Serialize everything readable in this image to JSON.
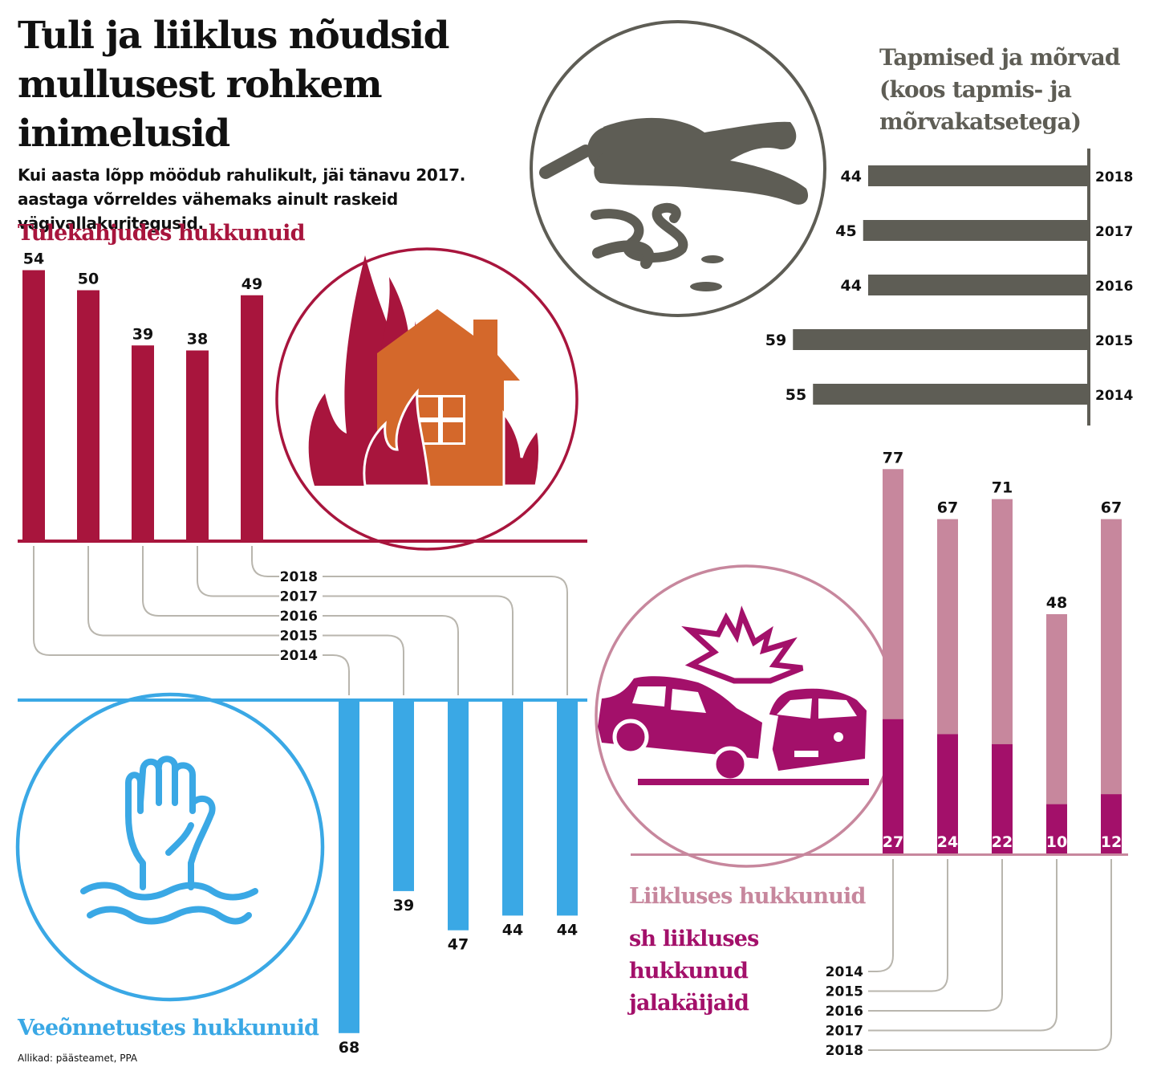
{
  "title": "Tuli ja liiklus nõudsid mullusest rohkem inimelusid",
  "subtitle": "Kui aasta lõpp möödub rahulikult, jäi tänavu 2017. aastaga võrreldes vähemaks ainult raskeid vägivallakuritegusid.",
  "source": "Allikad: päästeamet, PPA",
  "colors": {
    "fire": "#a8153d",
    "fire_house": "#d4682b",
    "water": "#3aa8e5",
    "murder": "#5e5d55",
    "traffic": "#c7879d",
    "pedestrian": "#a3106a",
    "connector": "#b9b6ae"
  },
  "icons": [
    "fire-house-icon",
    "crime-scene-body-icon",
    "drowning-hand-icon",
    "car-crash-icon"
  ],
  "chart_data": [
    {
      "id": "fire",
      "type": "bar",
      "title": "Tulekahjudes hukkunuid",
      "categories": [
        "2014",
        "2015",
        "2016",
        "2017",
        "2018"
      ],
      "values": [
        54,
        50,
        39,
        38,
        49
      ]
    },
    {
      "id": "water",
      "type": "bar",
      "title": "Veeõnnetustes hukkunuid",
      "categories": [
        "2014",
        "2015",
        "2016",
        "2017",
        "2018"
      ],
      "values": [
        68,
        39,
        47,
        44,
        44
      ]
    },
    {
      "id": "murder",
      "type": "bar",
      "orientation": "horizontal",
      "title": "Tapmised ja mõrvad (koos tapmis- ja mõrvakatsetega)",
      "categories": [
        "2018",
        "2017",
        "2016",
        "2015",
        "2014"
      ],
      "values": [
        44,
        45,
        44,
        59,
        55
      ]
    },
    {
      "id": "traffic",
      "type": "bar",
      "title": "Liikluses hukkunuid",
      "categories": [
        "2014",
        "2015",
        "2016",
        "2017",
        "2018"
      ],
      "series": [
        {
          "name": "Liikluses hukkunuid",
          "values": [
            77,
            67,
            71,
            48,
            67
          ]
        },
        {
          "name": "sh liikluses hukkunud jalakäijaid",
          "values": [
            27,
            24,
            22,
            10,
            12
          ]
        }
      ]
    }
  ]
}
